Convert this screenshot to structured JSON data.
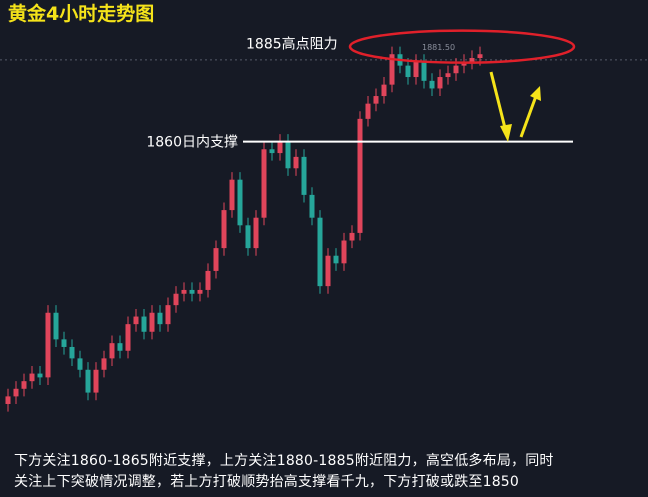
{
  "chart_data": {
    "type": "candlestick",
    "title": "黄金4小时走势图",
    "open": [
      1791,
      1793,
      1795,
      1797,
      1799,
      1798,
      1815,
      1808,
      1806,
      1803,
      1800,
      1794,
      1800,
      1803,
      1807,
      1805,
      1812,
      1814,
      1810,
      1815,
      1812,
      1817,
      1820,
      1821,
      1820,
      1821,
      1826,
      1832,
      1842,
      1850,
      1838,
      1832,
      1840,
      1858,
      1857,
      1860,
      1853,
      1856,
      1846,
      1840,
      1822,
      1830,
      1828,
      1834,
      1836,
      1866,
      1870,
      1872,
      1875,
      1883,
      1880,
      1877,
      1881,
      1876,
      1874,
      1877,
      1878,
      1880,
      1881,
      1882
    ],
    "high": [
      1795,
      1797,
      1799,
      1801,
      1801,
      1817,
      1817,
      1810,
      1808,
      1805,
      1802,
      1802,
      1805,
      1809,
      1809,
      1814,
      1816,
      1816,
      1817,
      1817,
      1819,
      1822,
      1823,
      1823,
      1823,
      1828,
      1834,
      1844,
      1852,
      1852,
      1840,
      1842,
      1860,
      1860,
      1862,
      1862,
      1858,
      1858,
      1848,
      1842,
      1832,
      1832,
      1836,
      1838,
      1868,
      1872,
      1874,
      1877,
      1885,
      1885,
      1882,
      1883,
      1883,
      1878,
      1879,
      1880,
      1882,
      1883,
      1884,
      1885
    ],
    "low": [
      1789,
      1791,
      1793,
      1795,
      1796,
      1796,
      1806,
      1804,
      1801,
      1798,
      1792,
      1792,
      1798,
      1801,
      1803,
      1803,
      1810,
      1808,
      1808,
      1810,
      1810,
      1815,
      1818,
      1818,
      1818,
      1819,
      1824,
      1830,
      1840,
      1836,
      1830,
      1830,
      1838,
      1855,
      1855,
      1851,
      1851,
      1844,
      1838,
      1820,
      1820,
      1826,
      1826,
      1832,
      1834,
      1864,
      1868,
      1870,
      1873,
      1878,
      1875,
      1875,
      1874,
      1872,
      1872,
      1875,
      1876,
      1878,
      1879,
      1880
    ],
    "close": [
      1793,
      1795,
      1797,
      1799,
      1798,
      1815,
      1808,
      1806,
      1803,
      1800,
      1794,
      1800,
      1803,
      1807,
      1805,
      1812,
      1814,
      1810,
      1815,
      1812,
      1817,
      1820,
      1821,
      1820,
      1821,
      1826,
      1832,
      1842,
      1850,
      1838,
      1832,
      1840,
      1858,
      1857,
      1860,
      1853,
      1856,
      1846,
      1840,
      1822,
      1830,
      1828,
      1834,
      1836,
      1866,
      1870,
      1872,
      1875,
      1883,
      1880,
      1877,
      1881,
      1876,
      1874,
      1877,
      1878,
      1880,
      1881,
      1882,
      1883
    ],
    "up_color": "#e0455b",
    "down_color": "#26a69a",
    "ylim": [
      1786,
      1897
    ],
    "resistance": {
      "value": 1885,
      "label": "1885高点阻力"
    },
    "support": {
      "value": 1860,
      "label": "1860日内支撑"
    },
    "price_marker": {
      "value": 1881.5,
      "label": "1881.50"
    },
    "commentary": [
      "下方关注1860-1865附近支撑，上方关注1880-1885附近阻力，高空低多布局，同时",
      "关注上下突破情况调整，若上方打破顺势抬高支撑看千九，下方打破或跌至1850"
    ]
  }
}
